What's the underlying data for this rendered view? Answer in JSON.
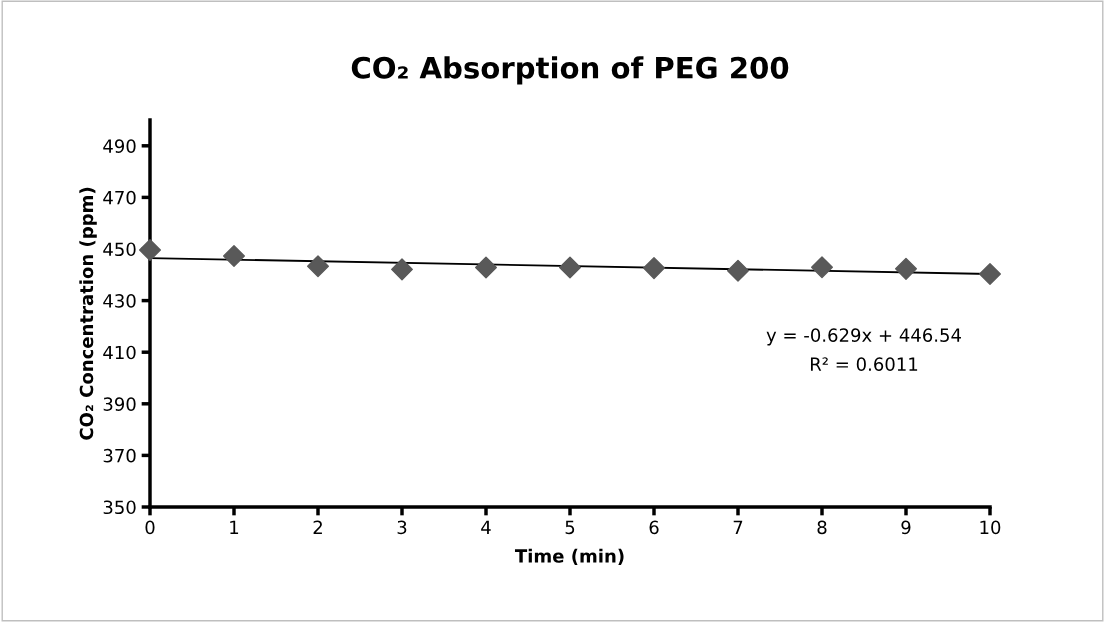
{
  "chart_data": {
    "type": "scatter",
    "title": "CO₂ Absorption of PEG 200",
    "xlabel": "Time (min)",
    "ylabel": "CO₂ Concentration (ppm)",
    "series": [
      {
        "color": "#595959",
        "marker": "diamond",
        "x": [
          0,
          1,
          2,
          3,
          4,
          5,
          6,
          7,
          8,
          9,
          10
        ],
        "values": [
          449.6,
          447.3,
          443.3,
          442.1,
          442.8,
          442.8,
          442.6,
          441.6,
          442.9,
          442.3,
          440.3
        ]
      },
      {
        "type": "line",
        "marker": "none",
        "color": "#000000",
        "x": [
          0,
          10
        ],
        "values": [
          446.5,
          440.3
        ]
      }
    ],
    "annotations": [
      "y = -0.629x + 446.54",
      "R² = 0.6011"
    ],
    "xlim": [
      0,
      10
    ],
    "xticks": [
      0,
      1,
      2,
      3,
      4,
      5,
      6,
      7,
      8,
      9,
      10
    ],
    "ylim": [
      350,
      500
    ],
    "yticks": [
      350,
      370,
      390,
      410,
      430,
      450,
      470,
      490
    ],
    "grid": false,
    "legend": false
  }
}
